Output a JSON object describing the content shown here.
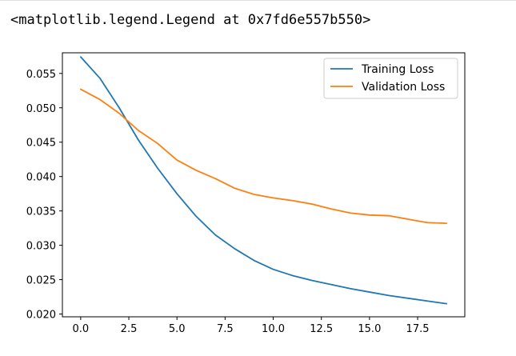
{
  "output": {
    "text": "<matplotlib.legend.Legend at 0x7fd6e557b550>"
  },
  "chart_data": {
    "type": "line",
    "title": "",
    "xlabel": "",
    "ylabel": "",
    "xlim": [
      -0.95,
      19.95
    ],
    "ylim": [
      0.0196,
      0.058
    ],
    "xticks": [
      0.0,
      2.5,
      5.0,
      7.5,
      10.0,
      12.5,
      15.0,
      17.5
    ],
    "xtick_labels": [
      "0.0",
      "2.5",
      "5.0",
      "7.5",
      "10.0",
      "12.5",
      "15.0",
      "17.5"
    ],
    "yticks": [
      0.02,
      0.025,
      0.03,
      0.035,
      0.04,
      0.045,
      0.05,
      0.055
    ],
    "ytick_labels": [
      "0.020",
      "0.025",
      "0.030",
      "0.035",
      "0.040",
      "0.045",
      "0.050",
      "0.055"
    ],
    "grid": false,
    "legend_position": "top-right",
    "x": [
      0,
      1,
      2,
      3,
      4,
      5,
      6,
      7,
      8,
      9,
      10,
      11,
      12,
      13,
      14,
      15,
      16,
      17,
      18,
      19
    ],
    "series": [
      {
        "name": "Training Loss",
        "color": "#1f77b4",
        "values": [
          0.0574,
          0.0543,
          0.05,
          0.0453,
          0.0412,
          0.0375,
          0.0342,
          0.0315,
          0.0295,
          0.0278,
          0.0265,
          0.0256,
          0.0249,
          0.0243,
          0.0237,
          0.0232,
          0.0227,
          0.0223,
          0.0219,
          0.0215
        ]
      },
      {
        "name": "Validation Loss",
        "color": "#ff7f0e",
        "values": [
          0.0527,
          0.0512,
          0.0492,
          0.0467,
          0.0448,
          0.0424,
          0.0409,
          0.0397,
          0.0383,
          0.0374,
          0.0369,
          0.0365,
          0.036,
          0.0353,
          0.0347,
          0.0344,
          0.0343,
          0.0338,
          0.0333,
          0.0332
        ]
      }
    ]
  }
}
